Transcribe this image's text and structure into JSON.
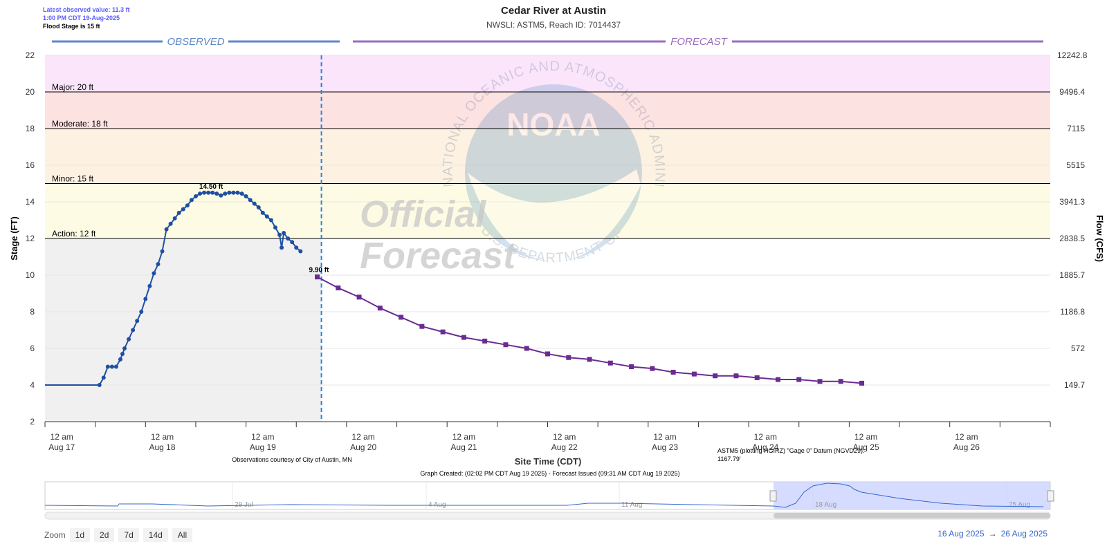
{
  "header": {
    "title": "Cedar River at Austin",
    "subtitle": "NWSLI: ASTM5, Reach ID: 7014437",
    "latest_value": "Latest observed value: 11.3 ft",
    "latest_time": "1:00 PM CDT 19-Aug-2025",
    "flood_stage": "Flood Stage is 15 ft"
  },
  "watermark": {
    "ring_text": "NATIONAL OCEANIC AND ATMOSPHERIC ADMINISTRATION",
    "ring_text_bottom": "U.S. DEPARTMENT OF COMMERCE",
    "logo": "NOAA",
    "line1": "Official",
    "line2": "Forecast"
  },
  "sections": {
    "observed": "OBSERVED",
    "forecast": "FORECAST"
  },
  "footnotes": {
    "obs_credit": "Observations courtesy of City of Austin, MN",
    "datum_line1": "ASTM5 (plotting HGIRZ) \"Gage 0\" Datum (NGVD29):",
    "datum_line2": "1167.79'",
    "graph_created": "Graph Created: (02:02 PM CDT Aug 19 2025) - Forecast Issued (09:31 AM CDT Aug 19 2025)"
  },
  "navigator": {
    "labels": [
      "28 Jul",
      "4 Aug",
      "11 Aug",
      "18 Aug",
      "25 Aug"
    ]
  },
  "zoom": {
    "label": "Zoom",
    "buttons": [
      "1d",
      "2d",
      "7d",
      "14d",
      "All"
    ]
  },
  "range": {
    "from": "16 Aug 2025",
    "to": "26 Aug 2025"
  },
  "colors": {
    "observed": "#1f4fa3",
    "forecast": "#6a2c91",
    "observed_header": "#5b87c7",
    "forecast_header": "#9a6bbd",
    "major_band": "#fbe5fb",
    "moderate_band": "#fde2e2",
    "minor_band": "#fdf1e2",
    "action_band": "#fdfbe3",
    "observed_bg": "#f0f0f0",
    "divider": "#1e88e5",
    "range_text": "#3366cc"
  },
  "chart_data": {
    "type": "line",
    "xlabel": "Site Time (CDT)",
    "ylabel": "Stage (FT)",
    "y2label": "Flow (CFS)",
    "ylim": [
      2,
      22
    ],
    "xlim": [
      "Aug 16 20:00",
      "Aug 26 20:00"
    ],
    "yticks": [
      2,
      4,
      6,
      8,
      10,
      12,
      14,
      16,
      18,
      20,
      22
    ],
    "y2ticks": [
      {
        "stage": 4,
        "label": "149.7"
      },
      {
        "stage": 6,
        "label": "572"
      },
      {
        "stage": 8,
        "label": "1186.8"
      },
      {
        "stage": 10,
        "label": "1885.7"
      },
      {
        "stage": 12,
        "label": "2838.5"
      },
      {
        "stage": 14,
        "label": "3941.3"
      },
      {
        "stage": 16,
        "label": "5515"
      },
      {
        "stage": 18,
        "label": "7115"
      },
      {
        "stage": 20,
        "label": "9496.4"
      },
      {
        "stage": 22,
        "label": "12242.8"
      }
    ],
    "xticks": [
      {
        "line1": "12 am",
        "line2": "Aug 17"
      },
      {
        "line1": "12 am",
        "line2": "Aug 18"
      },
      {
        "line1": "12 am",
        "line2": "Aug 19"
      },
      {
        "line1": "12 am",
        "line2": "Aug 20"
      },
      {
        "line1": "12 am",
        "line2": "Aug 21"
      },
      {
        "line1": "12 am",
        "line2": "Aug 22"
      },
      {
        "line1": "12 am",
        "line2": "Aug 23"
      },
      {
        "line1": "12 am",
        "line2": "Aug 24"
      },
      {
        "line1": "12 am",
        "line2": "Aug 25"
      },
      {
        "line1": "12 am",
        "line2": "Aug 26"
      }
    ],
    "thresholds": [
      {
        "name": "Major",
        "label": "Major: 20 ft",
        "value": 20
      },
      {
        "name": "Moderate",
        "label": "Moderate: 18 ft",
        "value": 18
      },
      {
        "name": "Minor",
        "label": "Minor: 15 ft",
        "value": 15
      },
      {
        "name": "Action",
        "label": "Action: 12 ft",
        "value": 12
      }
    ],
    "divider_time": "Aug 19 14:00",
    "series": [
      {
        "name": "Observed",
        "unit_hours_from": "Aug 17 00:00",
        "points": [
          [
            -4,
            4.0
          ],
          [
            9,
            4.0
          ],
          [
            10,
            4.4
          ],
          [
            11,
            5.0
          ],
          [
            12,
            5.0
          ],
          [
            13,
            5.0
          ],
          [
            14,
            5.4
          ],
          [
            14.5,
            5.7
          ],
          [
            15,
            6.0
          ],
          [
            16,
            6.5
          ],
          [
            17,
            7.0
          ],
          [
            18,
            7.5
          ],
          [
            19,
            8.0
          ],
          [
            20,
            8.7
          ],
          [
            21,
            9.4
          ],
          [
            22,
            10.1
          ],
          [
            23,
            10.6
          ],
          [
            24,
            11.3
          ],
          [
            25,
            12.5
          ],
          [
            26,
            12.8
          ],
          [
            27,
            13.1
          ],
          [
            28,
            13.4
          ],
          [
            29,
            13.6
          ],
          [
            30,
            13.8
          ],
          [
            31,
            14.1
          ],
          [
            32,
            14.3
          ],
          [
            33,
            14.45
          ],
          [
            34,
            14.5
          ],
          [
            35,
            14.5
          ],
          [
            36,
            14.5
          ],
          [
            37,
            14.45
          ],
          [
            38,
            14.35
          ],
          [
            39,
            14.45
          ],
          [
            40,
            14.5
          ],
          [
            41,
            14.5
          ],
          [
            42,
            14.5
          ],
          [
            43,
            14.45
          ],
          [
            44,
            14.3
          ],
          [
            45,
            14.1
          ],
          [
            46,
            13.9
          ],
          [
            47,
            13.7
          ],
          [
            48,
            13.4
          ],
          [
            49,
            13.2
          ],
          [
            50,
            13.0
          ],
          [
            51,
            12.6
          ],
          [
            52,
            12.2
          ],
          [
            52.5,
            11.5
          ],
          [
            53,
            12.3
          ],
          [
            54,
            12.0
          ],
          [
            55,
            11.8
          ],
          [
            56,
            11.5
          ],
          [
            57,
            11.3
          ]
        ],
        "peak_label": "14.50 ft",
        "peak_point": [
          36,
          14.5
        ]
      },
      {
        "name": "Forecast",
        "unit_hours_from": "Aug 17 00:00",
        "points": [
          [
            61,
            9.9
          ],
          [
            66,
            9.3
          ],
          [
            71,
            8.8
          ],
          [
            76,
            8.2
          ],
          [
            81,
            7.7
          ],
          [
            86,
            7.2
          ],
          [
            91,
            6.9
          ],
          [
            96,
            6.6
          ],
          [
            101,
            6.4
          ],
          [
            106,
            6.2
          ],
          [
            111,
            6.0
          ],
          [
            116,
            5.7
          ],
          [
            121,
            5.5
          ],
          [
            126,
            5.4
          ],
          [
            131,
            5.2
          ],
          [
            136,
            5.0
          ],
          [
            141,
            4.9
          ],
          [
            146,
            4.7
          ],
          [
            151,
            4.6
          ],
          [
            156,
            4.5
          ],
          [
            161,
            4.5
          ],
          [
            166,
            4.4
          ],
          [
            171,
            4.3
          ],
          [
            176,
            4.3
          ],
          [
            181,
            4.2
          ],
          [
            186,
            4.2
          ],
          [
            191,
            4.1
          ]
        ],
        "start_label": "9.90 ft",
        "start_point": [
          61,
          9.9
        ]
      }
    ]
  }
}
